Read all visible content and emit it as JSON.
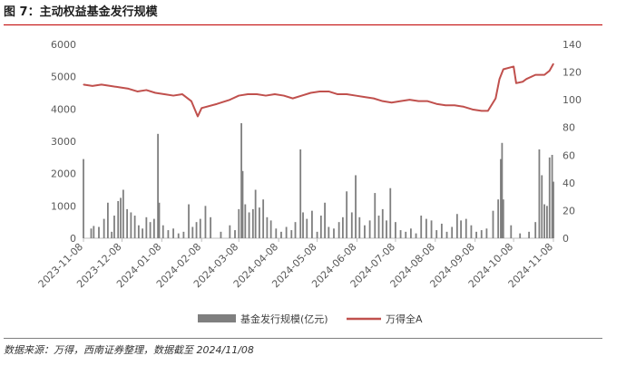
{
  "figure": {
    "title": "图 7：主动权益基金发行规模",
    "source": "数据来源：万得，西南证券整理，数据截至 2024/11/08"
  },
  "colors": {
    "bars": "#7f7f7f",
    "line": "#c0504d"
  },
  "chart_data": {
    "type": "bar+line",
    "title": "",
    "x_ticks": [
      "2023-11-08",
      "2023-12-08",
      "2024-01-08",
      "2024-02-08",
      "2024-03-08",
      "2024-04-08",
      "2024-05-08",
      "2024-06-08",
      "2024-07-08",
      "2024-08-08",
      "2024-09-08",
      "2024-10-08",
      "2024-11-08"
    ],
    "x_range": [
      "2023-11-08",
      "2024-11-08"
    ],
    "y_left": {
      "ylim": [
        0,
        6000
      ],
      "ticks": [
        0,
        1000,
        2000,
        3000,
        4000,
        5000,
        6000
      ],
      "label": ""
    },
    "y_right": {
      "ylim": [
        0,
        140
      ],
      "ticks": [
        0,
        20,
        40,
        60,
        80,
        100,
        120,
        140
      ],
      "label": ""
    },
    "grid": false,
    "legend_position": "bottom",
    "series": [
      {
        "name": "基金发行规模(亿元)",
        "type": "bar",
        "axis": "left",
        "data": [
          [
            "2023-11-08",
            2450
          ],
          [
            "2023-11-14",
            300
          ],
          [
            "2023-11-16",
            380
          ],
          [
            "2023-11-20",
            350
          ],
          [
            "2023-11-24",
            600
          ],
          [
            "2023-11-27",
            1100
          ],
          [
            "2023-11-30",
            200
          ],
          [
            "2023-12-02",
            700
          ],
          [
            "2023-12-05",
            1150
          ],
          [
            "2023-12-07",
            1250
          ],
          [
            "2023-12-09",
            1500
          ],
          [
            "2023-12-12",
            900
          ],
          [
            "2023-12-15",
            800
          ],
          [
            "2023-12-18",
            700
          ],
          [
            "2023-12-21",
            400
          ],
          [
            "2023-12-24",
            300
          ],
          [
            "2023-12-27",
            650
          ],
          [
            "2023-12-30",
            500
          ],
          [
            "2024-01-02",
            600
          ],
          [
            "2024-01-05",
            3230
          ],
          [
            "2024-01-06",
            1100
          ],
          [
            "2024-01-09",
            400
          ],
          [
            "2024-01-13",
            250
          ],
          [
            "2024-01-17",
            300
          ],
          [
            "2024-01-21",
            150
          ],
          [
            "2024-01-25",
            200
          ],
          [
            "2024-01-29",
            1050
          ],
          [
            "2024-02-01",
            350
          ],
          [
            "2024-02-04",
            500
          ],
          [
            "2024-02-07",
            600
          ],
          [
            "2024-02-11",
            1000
          ],
          [
            "2024-02-15",
            650
          ],
          [
            "2024-02-23",
            200
          ],
          [
            "2024-03-01",
            400
          ],
          [
            "2024-03-05",
            250
          ],
          [
            "2024-03-08",
            900
          ],
          [
            "2024-03-10",
            3560
          ],
          [
            "2024-03-11",
            2080
          ],
          [
            "2024-03-13",
            1050
          ],
          [
            "2024-03-16",
            800
          ],
          [
            "2024-03-19",
            900
          ],
          [
            "2024-03-21",
            1500
          ],
          [
            "2024-03-24",
            950
          ],
          [
            "2024-03-27",
            1200
          ],
          [
            "2024-03-30",
            650
          ],
          [
            "2024-04-02",
            550
          ],
          [
            "2024-04-06",
            300
          ],
          [
            "2024-04-10",
            200
          ],
          [
            "2024-04-14",
            350
          ],
          [
            "2024-04-18",
            250
          ],
          [
            "2024-04-21",
            500
          ],
          [
            "2024-04-25",
            2750
          ],
          [
            "2024-04-27",
            800
          ],
          [
            "2024-04-30",
            600
          ],
          [
            "2024-05-04",
            850
          ],
          [
            "2024-05-08",
            200
          ],
          [
            "2024-05-11",
            700
          ],
          [
            "2024-05-14",
            1100
          ],
          [
            "2024-05-17",
            350
          ],
          [
            "2024-05-21",
            300
          ],
          [
            "2024-05-25",
            500
          ],
          [
            "2024-05-28",
            650
          ],
          [
            "2024-05-31",
            1450
          ],
          [
            "2024-06-04",
            800
          ],
          [
            "2024-06-07",
            1950
          ],
          [
            "2024-06-10",
            650
          ],
          [
            "2024-06-14",
            400
          ],
          [
            "2024-06-18",
            550
          ],
          [
            "2024-06-22",
            1400
          ],
          [
            "2024-06-25",
            700
          ],
          [
            "2024-06-28",
            900
          ],
          [
            "2024-07-01",
            550
          ],
          [
            "2024-07-04",
            1550
          ],
          [
            "2024-07-08",
            500
          ],
          [
            "2024-07-12",
            250
          ],
          [
            "2024-07-16",
            200
          ],
          [
            "2024-07-20",
            300
          ],
          [
            "2024-07-24",
            150
          ],
          [
            "2024-07-28",
            700
          ],
          [
            "2024-08-01",
            600
          ],
          [
            "2024-08-05",
            550
          ],
          [
            "2024-08-09",
            250
          ],
          [
            "2024-08-13",
            450
          ],
          [
            "2024-08-17",
            200
          ],
          [
            "2024-08-21",
            350
          ],
          [
            "2024-08-25",
            750
          ],
          [
            "2024-08-28",
            550
          ],
          [
            "2024-09-01",
            600
          ],
          [
            "2024-09-05",
            400
          ],
          [
            "2024-09-09",
            200
          ],
          [
            "2024-09-13",
            250
          ],
          [
            "2024-09-17",
            300
          ],
          [
            "2024-09-22",
            850
          ],
          [
            "2024-09-26",
            1200
          ],
          [
            "2024-09-28",
            2450
          ],
          [
            "2024-09-29",
            2950
          ],
          [
            "2024-09-30",
            1200
          ],
          [
            "2024-10-06",
            400
          ],
          [
            "2024-10-13",
            150
          ],
          [
            "2024-10-20",
            200
          ],
          [
            "2024-10-25",
            500
          ],
          [
            "2024-10-28",
            2750
          ],
          [
            "2024-10-30",
            1950
          ],
          [
            "2024-11-01",
            1050
          ],
          [
            "2024-11-03",
            1000
          ],
          [
            "2024-11-05",
            2500
          ],
          [
            "2024-11-07",
            2580
          ],
          [
            "2024-11-08",
            1750
          ]
        ]
      },
      {
        "name": "万得全A",
        "type": "line",
        "axis": "right",
        "data": [
          [
            "2023-11-08",
            111
          ],
          [
            "2023-11-15",
            110
          ],
          [
            "2023-11-22",
            111
          ],
          [
            "2023-11-29",
            110
          ],
          [
            "2023-12-06",
            109
          ],
          [
            "2023-12-13",
            108
          ],
          [
            "2023-12-20",
            106
          ],
          [
            "2023-12-27",
            107
          ],
          [
            "2024-01-03",
            105
          ],
          [
            "2024-01-10",
            104
          ],
          [
            "2024-01-17",
            103
          ],
          [
            "2024-01-24",
            104
          ],
          [
            "2024-01-31",
            99
          ],
          [
            "2024-02-05",
            88
          ],
          [
            "2024-02-08",
            94
          ],
          [
            "2024-02-20",
            97
          ],
          [
            "2024-03-01",
            100
          ],
          [
            "2024-03-08",
            103
          ],
          [
            "2024-03-15",
            104
          ],
          [
            "2024-03-22",
            104
          ],
          [
            "2024-03-29",
            103
          ],
          [
            "2024-04-05",
            104
          ],
          [
            "2024-04-12",
            103
          ],
          [
            "2024-04-19",
            101
          ],
          [
            "2024-04-26",
            103
          ],
          [
            "2024-05-03",
            105
          ],
          [
            "2024-05-10",
            106
          ],
          [
            "2024-05-17",
            106
          ],
          [
            "2024-05-24",
            104
          ],
          [
            "2024-05-31",
            104
          ],
          [
            "2024-06-07",
            103
          ],
          [
            "2024-06-14",
            102
          ],
          [
            "2024-06-21",
            101
          ],
          [
            "2024-06-28",
            99
          ],
          [
            "2024-07-05",
            98
          ],
          [
            "2024-07-12",
            99
          ],
          [
            "2024-07-19",
            100
          ],
          [
            "2024-07-26",
            99
          ],
          [
            "2024-08-02",
            99
          ],
          [
            "2024-08-09",
            97
          ],
          [
            "2024-08-16",
            96
          ],
          [
            "2024-08-23",
            96
          ],
          [
            "2024-08-30",
            95
          ],
          [
            "2024-09-06",
            93
          ],
          [
            "2024-09-13",
            92
          ],
          [
            "2024-09-18",
            92
          ],
          [
            "2024-09-24",
            101
          ],
          [
            "2024-09-27",
            115
          ],
          [
            "2024-09-30",
            122
          ],
          [
            "2024-10-08",
            124
          ],
          [
            "2024-10-10",
            112
          ],
          [
            "2024-10-15",
            113
          ],
          [
            "2024-10-18",
            115
          ],
          [
            "2024-10-25",
            118
          ],
          [
            "2024-11-01",
            118
          ],
          [
            "2024-11-05",
            121
          ],
          [
            "2024-11-08",
            126
          ]
        ]
      }
    ]
  }
}
